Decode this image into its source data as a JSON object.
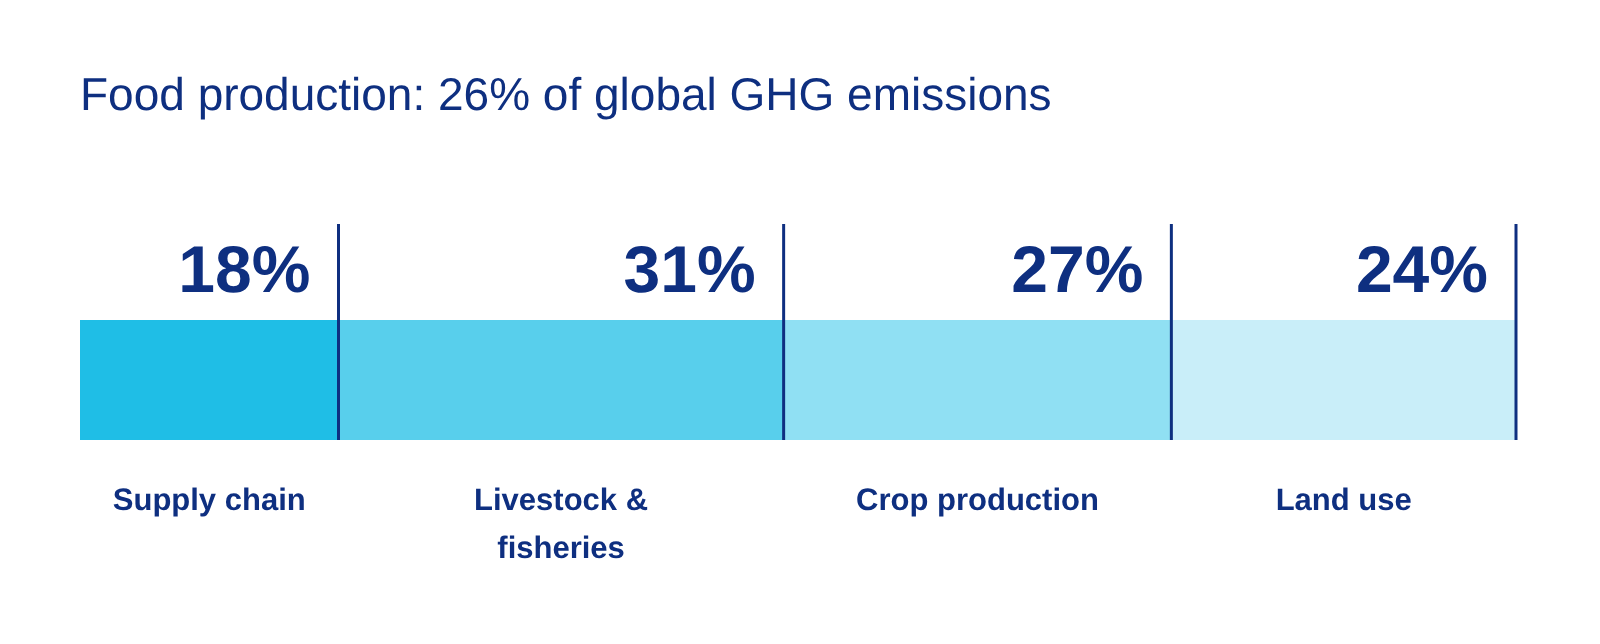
{
  "chart_data": {
    "type": "bar",
    "title": "Food production: 26% of global GHG emissions",
    "orientation": "horizontal",
    "stacked": true,
    "categories": [
      null
    ],
    "series": [
      {
        "name": "Supply chain",
        "color": "#1fbee6",
        "values": [
          18
        ],
        "value_labels": [
          "18%"
        ]
      },
      {
        "name": "Livestock &\nfisheries",
        "color": "#58cfec",
        "values": [
          31
        ],
        "value_labels": [
          "31%"
        ]
      },
      {
        "name": "Crop production",
        "color": "#90e0f3",
        "values": [
          27
        ],
        "value_labels": [
          "27%"
        ]
      },
      {
        "name": "Land use",
        "color": "#c9eef9",
        "values": [
          24
        ],
        "value_labels": [
          "24%"
        ]
      }
    ],
    "xlim": [
      0,
      100
    ],
    "legend": "bottom"
  }
}
